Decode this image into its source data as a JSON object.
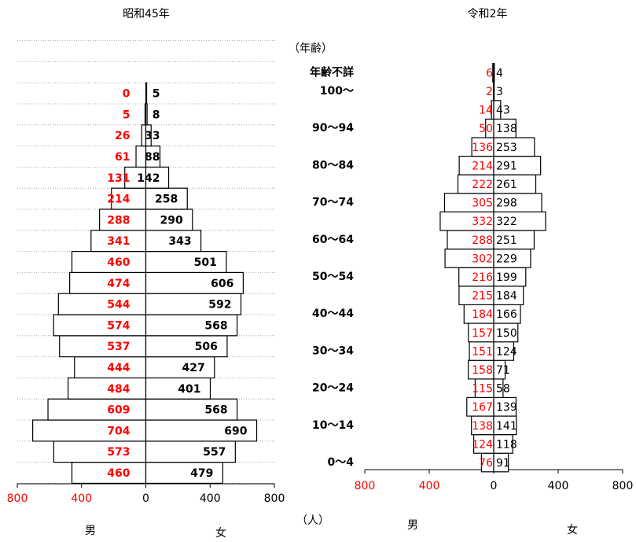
{
  "chart_data": [
    {
      "type": "pyramid",
      "title": "昭和45年",
      "grid": true,
      "categories": [
        null,
        null,
        null,
        null,
        null,
        null,
        null,
        null,
        null,
        null,
        null,
        null,
        null,
        null,
        null,
        null,
        null,
        null,
        null
      ],
      "series": [
        {
          "name": "男",
          "color": "#ff0000",
          "values": [
            460,
            573,
            704,
            609,
            484,
            444,
            537,
            574,
            544,
            474,
            460,
            341,
            288,
            214,
            131,
            61,
            26,
            5,
            0
          ]
        },
        {
          "name": "女",
          "color": "#000000",
          "values": [
            479,
            557,
            690,
            568,
            401,
            427,
            506,
            568,
            592,
            606,
            501,
            343,
            290,
            258,
            142,
            88,
            33,
            8,
            5
          ]
        }
      ],
      "xlim": [
        -800,
        800
      ],
      "xticks": [
        {
          "value": -800,
          "label": "800"
        },
        {
          "value": -400,
          "label": "400"
        },
        0,
        400,
        800
      ]
    },
    {
      "type": "pyramid",
      "title": "令和2年",
      "grid": false,
      "y_label": "（年齢）",
      "x_label": "（人）",
      "categories": [
        "0～4",
        null,
        "10～14",
        null,
        "20～24",
        null,
        "30～34",
        null,
        "40～44",
        null,
        "50～54",
        null,
        "60～64",
        null,
        "70～74",
        null,
        "80～84",
        null,
        "90～94",
        null,
        "100～",
        "年齢不詳"
      ],
      "series": [
        {
          "name": "男",
          "color": "#ff0000",
          "values": [
            76,
            124,
            138,
            167,
            115,
            158,
            151,
            157,
            184,
            215,
            216,
            302,
            288,
            332,
            305,
            222,
            214,
            136,
            50,
            14,
            2,
            6
          ]
        },
        {
          "name": "女",
          "color": "#000000",
          "values": [
            91,
            118,
            141,
            139,
            58,
            71,
            124,
            150,
            166,
            184,
            199,
            229,
            251,
            322,
            298,
            261,
            291,
            253,
            138,
            43,
            3,
            4
          ]
        }
      ],
      "xlim": [
        -800,
        800
      ],
      "xticks": [
        {
          "value": -800,
          "label": "800"
        },
        {
          "value": -400,
          "label": "400"
        },
        0,
        400,
        800
      ]
    }
  ]
}
